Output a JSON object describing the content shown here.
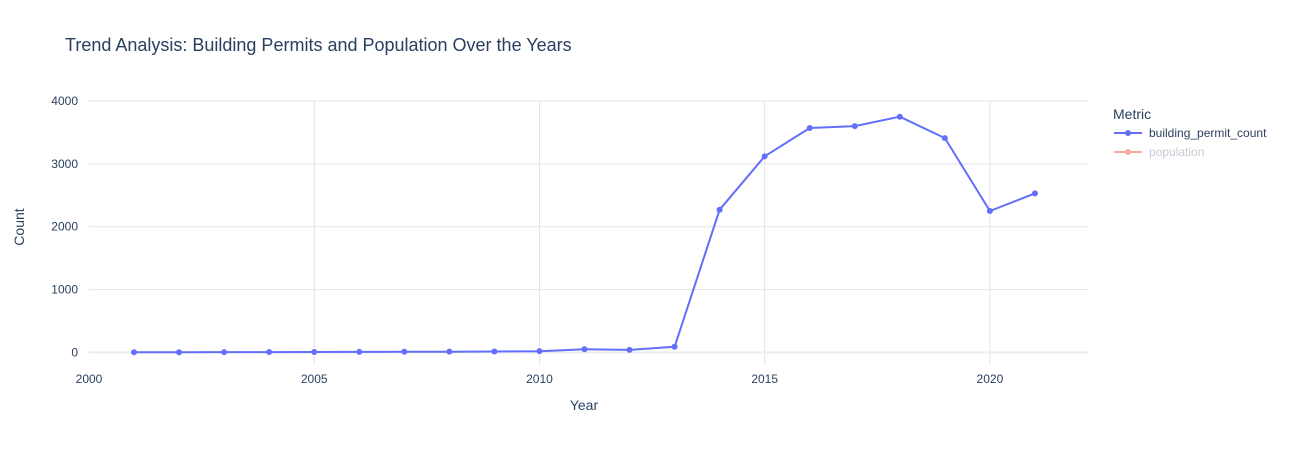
{
  "chart_data": {
    "type": "line",
    "title": "Trend Analysis: Building Permits and Population Over the Years",
    "xlabel": "Year",
    "ylabel": "Count",
    "xlim": [
      2000,
      2022.2
    ],
    "ylim": [
      -200,
      4000
    ],
    "xticks": [
      2000,
      2005,
      2010,
      2015,
      2020
    ],
    "yticks": [
      0,
      1000,
      2000,
      3000,
      4000
    ],
    "grid": true,
    "legend": {
      "title": "Metric",
      "position": "right"
    },
    "series": [
      {
        "name": "building_permit_count",
        "color": "#636efa",
        "visible": true,
        "x": [
          2001,
          2002,
          2003,
          2004,
          2005,
          2006,
          2007,
          2008,
          2009,
          2010,
          2011,
          2012,
          2013,
          2014,
          2015,
          2016,
          2017,
          2018,
          2019,
          2020,
          2021
        ],
        "y": [
          2,
          3,
          5,
          6,
          7,
          9,
          10,
          12,
          15,
          20,
          50,
          40,
          90,
          2270,
          3120,
          3570,
          3600,
          3750,
          3410,
          2250,
          2530
        ]
      },
      {
        "name": "population",
        "color": "#ef553b",
        "visible": false,
        "x": [],
        "y": []
      }
    ]
  }
}
